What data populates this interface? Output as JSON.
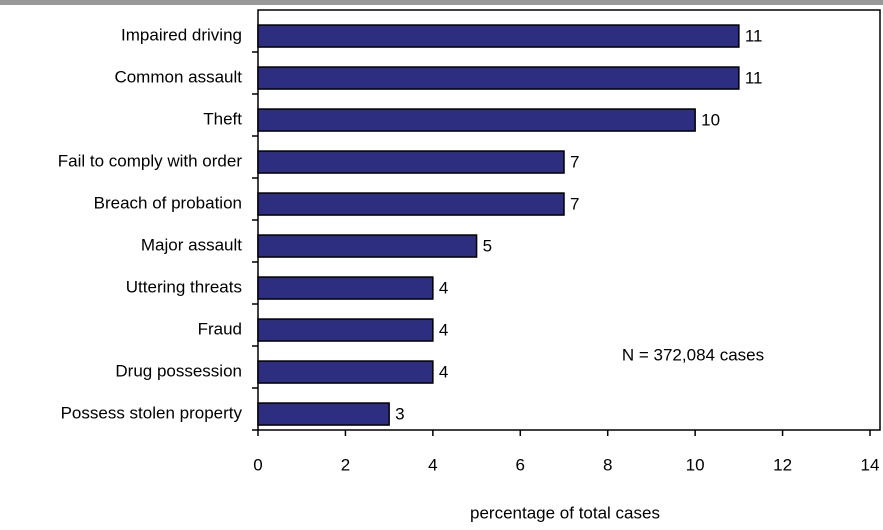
{
  "chart_data": {
    "type": "bar",
    "orientation": "horizontal",
    "categories": [
      "Impaired driving",
      "Common assault",
      "Theft",
      "Fail to comply with order",
      "Breach of probation",
      "Major assault",
      "Uttering threats",
      "Fraud",
      "Drug possession",
      "Possess stolen property"
    ],
    "values": [
      11,
      11,
      10,
      7,
      7,
      5,
      4,
      4,
      4,
      3
    ],
    "color": "#2e2e80",
    "xlim": [
      0,
      14
    ],
    "xticks": [
      0,
      2,
      4,
      6,
      8,
      10,
      12,
      14
    ],
    "xlabel": "percentage of total cases",
    "annotation": "N = 372,084 cases"
  }
}
